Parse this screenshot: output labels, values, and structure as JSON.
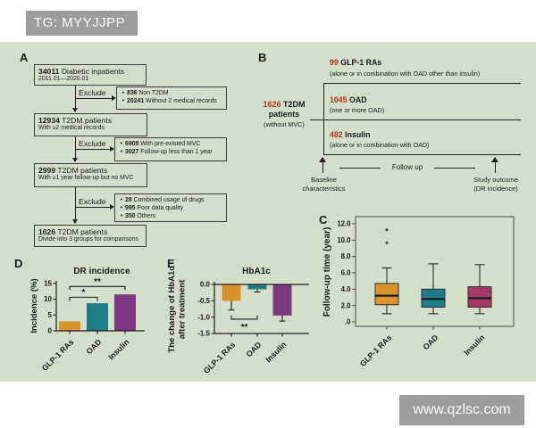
{
  "watermarks": {
    "tg_label": "TG: MYYJJPP",
    "site": "www.qzlsc.com"
  },
  "colors": {
    "figure_bg": "#d3dfc9",
    "accent_red": "#b23424",
    "orange": "#d8932d",
    "teal": "#1f7d8a",
    "purple": "#7f3982",
    "maroon": "#a63a67",
    "watermark_gray": "#9d9d9d"
  },
  "panel_labels": {
    "a": "A",
    "b": "B",
    "c": "C",
    "d": "D",
    "e": "E"
  },
  "panelA": {
    "exclude_label": "Exclude",
    "boxes": [
      {
        "number": "34011",
        "text": " Diabetic inpatients",
        "sub": "2011.01—2020.01"
      },
      {
        "number": "12934",
        "text": " T2DM patients",
        "sub": "With ≥2 medical records"
      },
      {
        "number": "2999",
        "text": " T2DM patients",
        "sub": "With ≥1 year follow-up but no MVC"
      },
      {
        "number": "1626",
        "text": " T2DM patients",
        "sub": "Divide into 3 groups for comparisons"
      }
    ],
    "exclude_boxes": [
      {
        "items": [
          {
            "number": "836",
            "text": " Non T2DM"
          },
          {
            "number": "20241",
            "text": " Without 2 medical records"
          }
        ]
      },
      {
        "items": [
          {
            "number": "6908",
            "text": " With pre-existed MVC"
          },
          {
            "number": "3027",
            "text": " Follow-up less than 1 year"
          }
        ]
      },
      {
        "items": [
          {
            "number": "28",
            "text": " Combined usage of drugs"
          },
          {
            "number": "995",
            "text": " Poor data quality"
          },
          {
            "number": "350",
            "text": " Others"
          }
        ]
      }
    ]
  },
  "panelB": {
    "source": {
      "number": "1626",
      "line1": " T2DM",
      "line2": "patients",
      "line3": "(without MVC)"
    },
    "branches": [
      {
        "number": "99",
        "name": " GLP-1 RAs",
        "sub": "(alone or in combination with OAD other than insulin)"
      },
      {
        "number": "1045",
        "name": " OAD",
        "sub": "(one or more OAD)"
      },
      {
        "number": "482",
        "name": " Insulin",
        "sub": "(alone or in combination with OAD)"
      }
    ],
    "follow_up": "Follow up",
    "baseline_l1": "Baseline",
    "baseline_l2": "characteristics",
    "outcome_l1": "Study outcome",
    "outcome_l2": "(DR incidence)"
  },
  "chart_data": [
    {
      "id": "C",
      "type": "box",
      "ylabel": "Follow-up time (year)",
      "categories": [
        "GLP-1 RAs",
        "OAD",
        "Insulin"
      ],
      "ytick_values": [
        12,
        10,
        8,
        6,
        4,
        2,
        0
      ],
      "ytick_labels": [
        "12.0",
        "10.0",
        "8.0",
        "6.0",
        "4.0",
        "2.0",
        ".0"
      ],
      "ylim": [
        -0.6,
        12.8
      ],
      "grid": false,
      "boxes": [
        {
          "min": 1.0,
          "q1": 2.1,
          "median": 3.2,
          "q3": 4.7,
          "max": 6.6,
          "outliers": [
            9.6,
            11.2
          ],
          "color": "#d8932d"
        },
        {
          "min": 1.0,
          "q1": 1.8,
          "median": 2.8,
          "q3": 4.0,
          "max": 7.1,
          "outliers": [],
          "color": "#1f7d8a"
        },
        {
          "min": 1.0,
          "q1": 1.8,
          "median": 2.9,
          "q3": 4.3,
          "max": 7.0,
          "outliers": [],
          "color": "#a63a67"
        }
      ]
    },
    {
      "id": "D",
      "type": "bar",
      "title": "DR incidence",
      "ylabel": "Incidence (%)",
      "categories": [
        "GLP-1 RAs",
        "OAD",
        "Insulin"
      ],
      "values": [
        3.0,
        8.7,
        11.5
      ],
      "colors": [
        "#d8932d",
        "#1f7d8a",
        "#7f3982"
      ],
      "ylim": [
        0,
        15
      ],
      "yticks": [
        0,
        5,
        10,
        15
      ],
      "grid": false,
      "sig": [
        {
          "from": 0,
          "to": 1,
          "value": 10.6,
          "label": "*"
        },
        {
          "from": 0,
          "to": 2,
          "value": 14.0,
          "label": "**"
        }
      ]
    },
    {
      "id": "E",
      "type": "bar",
      "title": "HbA1c",
      "ylabel_lines": [
        "The change of HbA1c",
        "after treatment"
      ],
      "categories": [
        "GLP-1 RAs",
        "OAD",
        "Insulin"
      ],
      "values": [
        -0.5,
        -0.15,
        -0.95
      ],
      "errors": [
        0.28,
        0.08,
        0.17
      ],
      "colors": [
        "#d8932d",
        "#1f7d8a",
        "#7f3982"
      ],
      "ylim": [
        -1.5,
        0
      ],
      "yticks": [
        0,
        -0.5,
        -1,
        -1.5
      ],
      "ytick_labels": [
        "0.0",
        "-0.5",
        "-1.0",
        "-1.5"
      ],
      "grid": false,
      "sig": [
        {
          "from": 0,
          "to": 1,
          "value": -1.06,
          "label": "**",
          "below": true
        }
      ]
    }
  ]
}
